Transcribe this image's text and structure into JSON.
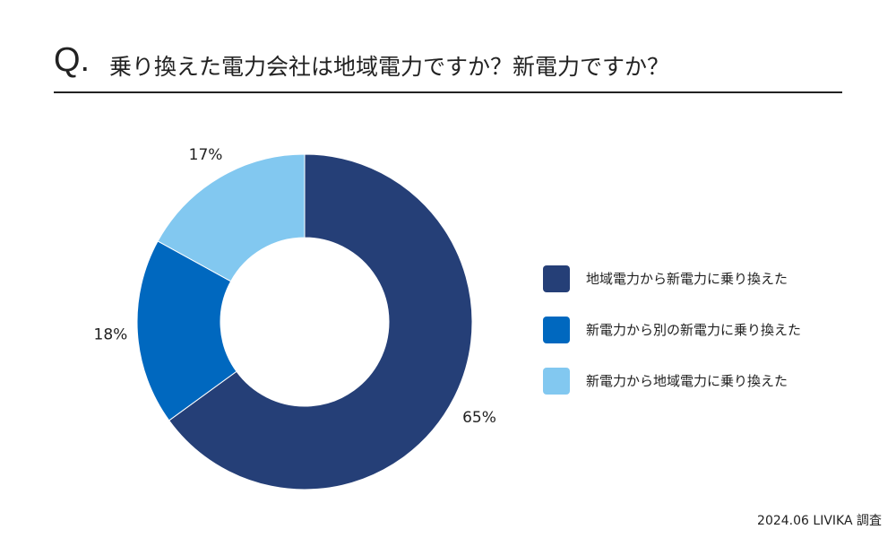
{
  "header": {
    "q": "Q.",
    "title": "乗り換えた電力会社は地域電力ですか？新電力ですか？"
  },
  "chart_data": {
    "type": "pie",
    "donut": true,
    "start": "top",
    "direction": "clockwise",
    "categories": [
      "地域電力から新電力に乗り換えた",
      "新電力から別の新電力に乗り換えた",
      "新電力から地域電力に乗り換えた"
    ],
    "values": [
      65,
      18,
      17
    ],
    "labels": [
      "65%",
      "18%",
      "17%"
    ],
    "colors": [
      "#253f77",
      "#0068bf",
      "#82c8f0"
    ],
    "legend": "right"
  },
  "footer": "2024.06 LIVIKA 調査"
}
